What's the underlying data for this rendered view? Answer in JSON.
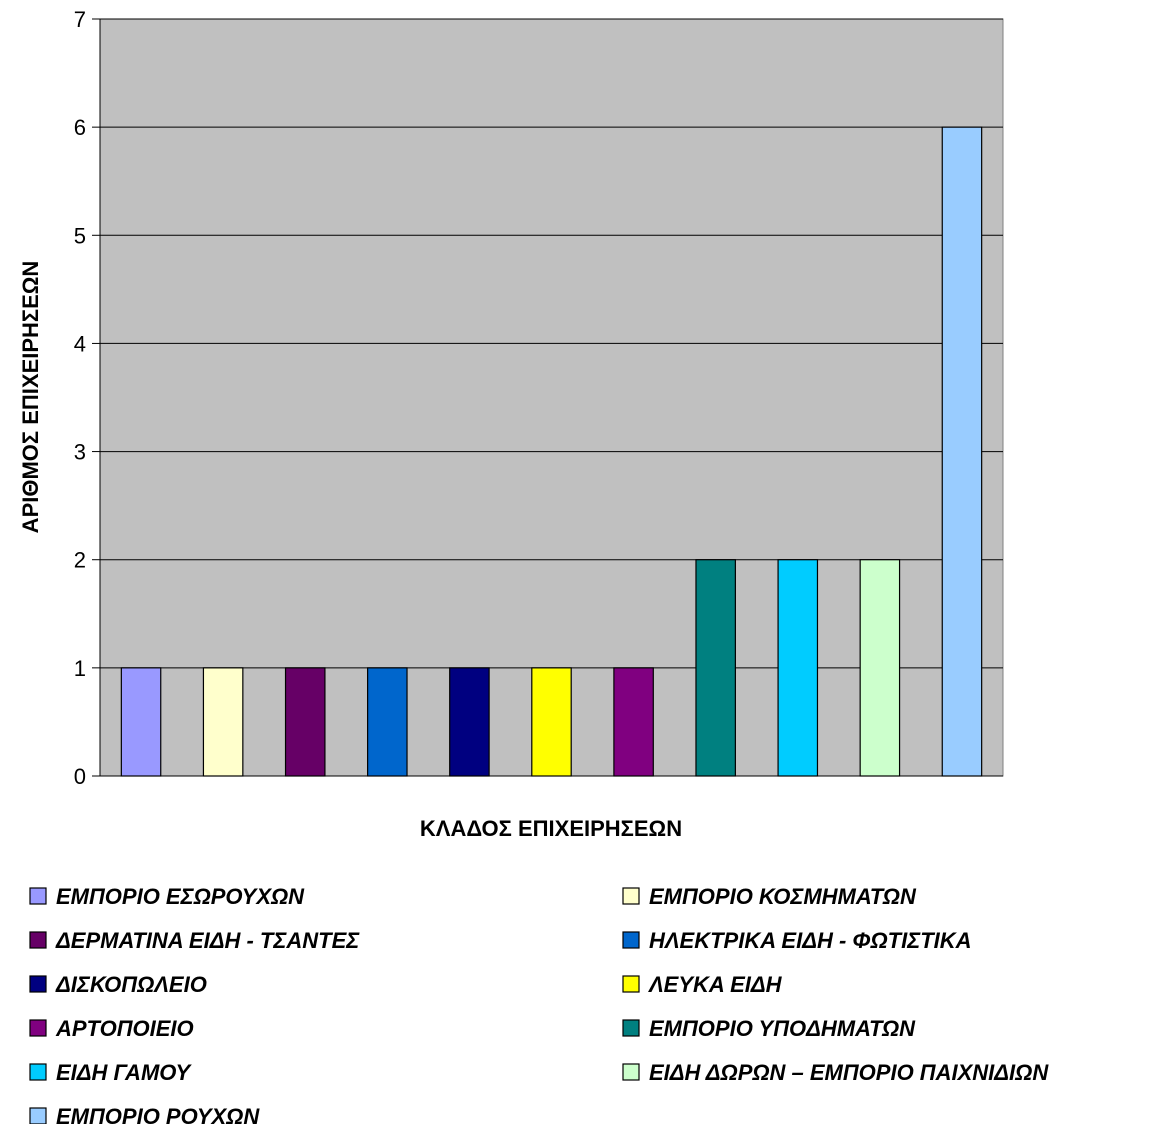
{
  "chart_data": {
    "type": "bar",
    "title": "",
    "xlabel": "ΚΛΑΔΟΣ ΕΠΙΧΕΙΡΗΣΕΩΝ",
    "ylabel": "ΑΡΙΘΜΟΣ ΕΠΙΧΕΙΡΗΣΕΩΝ",
    "ylim": [
      0,
      7
    ],
    "yticks": [
      "0",
      "1",
      "2",
      "3",
      "4",
      "5",
      "6",
      "7"
    ],
    "grid": true,
    "legend_position": "bottom",
    "plot_background": "#c0c0c0",
    "series": [
      {
        "name": "ΕΜΠΟΡΙΟ ΕΣΩΡΟΥΧΩΝ",
        "value": 1,
        "color": "#9999ff"
      },
      {
        "name": "ΕΜΠΟΡΙΟ ΚΟΣΜΗΜΑΤΩΝ",
        "value": 1,
        "color": "#ffffcc"
      },
      {
        "name": "ΔΕΡΜΑΤΙΝΑ ΕΙΔΗ - ΤΣΑΝΤΕΣ",
        "value": 1,
        "color": "#660066"
      },
      {
        "name": "ΗΛΕΚΤΡΙΚΑ ΕΙΔΗ - ΦΩΤΙΣΤΙΚΑ",
        "value": 1,
        "color": "#0066cc"
      },
      {
        "name": "ΔΙΣΚΟΠΩΛΕΙΟ",
        "value": 1,
        "color": "#000080"
      },
      {
        "name": "ΛΕΥΚΑ ΕΙΔΗ",
        "value": 1,
        "color": "#ffff00"
      },
      {
        "name": "ΑΡΤΟΠΟΙΕΙΟ",
        "value": 1,
        "color": "#800080"
      },
      {
        "name": "ΕΜΠΟΡΙΟ ΥΠΟΔΗΜΑΤΩΝ",
        "value": 2,
        "color": "#008080"
      },
      {
        "name": "ΕΙΔΗ ΓΑΜΟΥ",
        "value": 2,
        "color": "#00ccff"
      },
      {
        "name": "ΕΙΔΗ ΔΩΡΩΝ – ΕΜΠΟΡΙΟ ΠΑΙΧΝΙΔΙΩΝ",
        "value": 2,
        "color": "#ccffcc"
      },
      {
        "name": "ΕΜΠΟΡΙΟ ΡΟΥΧΩΝ",
        "value": 6,
        "color": "#99ccff"
      }
    ]
  }
}
